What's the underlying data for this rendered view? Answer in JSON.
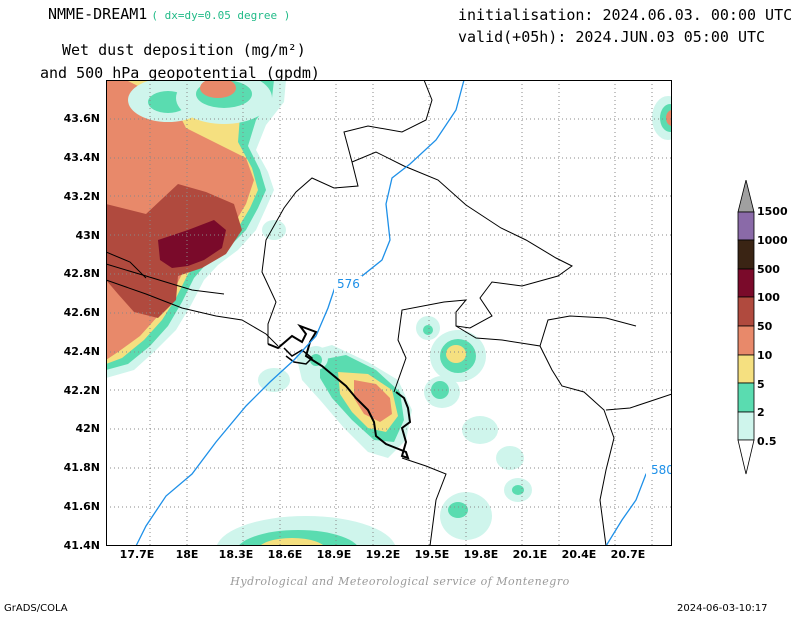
{
  "header": {
    "model": "NMME-DREAM1",
    "resolution": "( dx=dy=0.05 degree )",
    "title_line1": "Wet dust deposition (mg/m²)",
    "title_line2": "and 500 hPa geopotential (gpdm)",
    "init": "initialisation: 2024.06.03. 00:00 UTC",
    "valid": "valid(+05h): 2024.JUN.03 05:00 UTC"
  },
  "axes": {
    "lat_ticks": [
      "43.6N",
      "43.4N",
      "43.2N",
      "43N",
      "42.8N",
      "42.6N",
      "42.4N",
      "42.2N",
      "42N",
      "41.8N",
      "41.6N",
      "41.4N"
    ],
    "lon_ticks": [
      "17.7E",
      "18E",
      "18.3E",
      "18.6E",
      "18.9E",
      "19.2E",
      "19.5E",
      "19.8E",
      "20.1E",
      "20.4E",
      "20.7E"
    ]
  },
  "contours": {
    "label_576": "576",
    "label_580": "580",
    "color": "#1e90e8"
  },
  "legend": {
    "levels": [
      "1500",
      "1000",
      "500",
      "100",
      "50",
      "10",
      "5",
      "2",
      "0.5"
    ],
    "colors": {
      "c1500": "#a0a0a0",
      "c1000": "#8a6aa8",
      "c500": "#3a2414",
      "c100": "#7a0a2a",
      "c50": "#b04a3e",
      "c10": "#e8896a",
      "c5": "#f5e080",
      "c2": "#5adcb0",
      "c05": "#cff5ec"
    }
  },
  "credit": "Hydrological and Meteorological service of Montenegro",
  "footer": {
    "left": "GrADS/COLA",
    "right": "2024-06-03-10:17"
  }
}
